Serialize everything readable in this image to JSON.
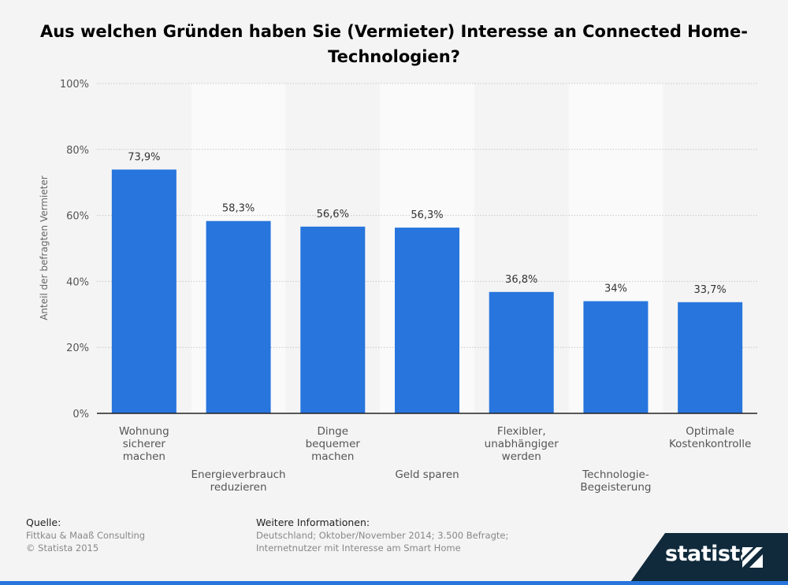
{
  "title_lines": [
    "Aus welchen Gründen haben Sie (Vermieter) Interesse an Connected Home-",
    "Technologien?"
  ],
  "colors": {
    "bar": "#2775dd",
    "band": "#fafafa",
    "grid": "#c8c8c8",
    "axis": "#222222"
  },
  "chart_data": {
    "type": "bar",
    "title": "Aus welchen Gründen haben Sie (Vermieter) Interesse an Connected Home-Technologien?",
    "ylabel": "Anteil der befragten Vermieter",
    "xlabel": "",
    "ylim": [
      0,
      100
    ],
    "yticks": [
      0,
      20,
      40,
      60,
      80,
      100
    ],
    "ytick_labels": [
      "0%",
      "20%",
      "40%",
      "60%",
      "80%",
      "100%"
    ],
    "grid": true,
    "categories": [
      [
        "Wohnung",
        "sicherer",
        "machen"
      ],
      [
        "Energieverbrauch",
        "reduzieren"
      ],
      [
        "Dinge",
        "bequemer",
        "machen"
      ],
      [
        "Geld sparen"
      ],
      [
        "Flexibler,",
        "unabhängiger",
        "werden"
      ],
      [
        "Technologie-",
        "Begeisterung"
      ],
      [
        "Optimale",
        "Kostenkontrolle"
      ]
    ],
    "values": [
      73.9,
      58.3,
      56.6,
      56.3,
      36.8,
      34,
      33.7
    ],
    "value_labels": [
      "73,9%",
      "58,3%",
      "56,6%",
      "56,3%",
      "36,8%",
      "34%",
      "33,7%"
    ]
  },
  "footer": {
    "source_heading": "Quelle:",
    "source_lines": [
      "Fittkau & Maaß Consulting",
      "© Statista 2015"
    ],
    "info_heading": "Weitere Informationen:",
    "info_lines": [
      "Deutschland; Oktober/November 2014; 3.500 Befragte;",
      "Internetnutzer mit Interesse am Smart Home"
    ]
  },
  "brand": {
    "name": "statista",
    "icon": "statista-logo-icon"
  }
}
